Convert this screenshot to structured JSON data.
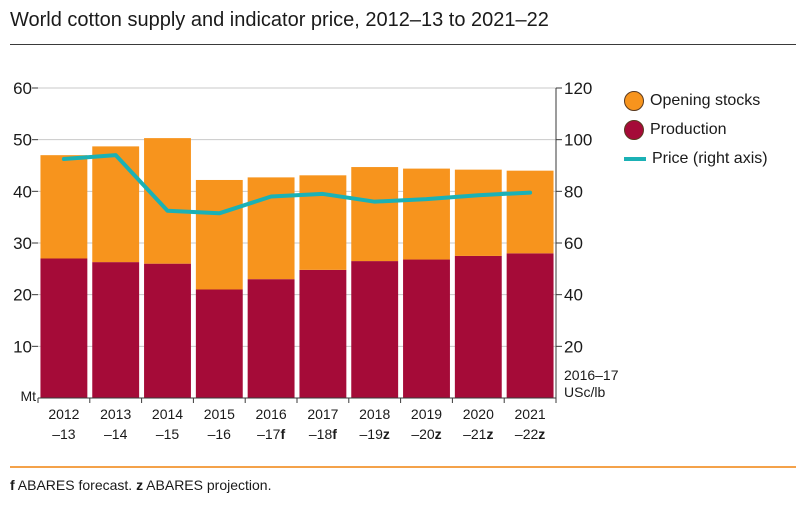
{
  "title": "World cotton supply and indicator price, 2012–13 to 2021–22",
  "footnote": {
    "f_marker": "f",
    "f_text": " ABARES forecast. ",
    "z_marker": "z",
    "z_text": " ABARES projection."
  },
  "colors": {
    "opening_stocks": "#f7941d",
    "production": "#a50b38",
    "price": "#1bb1b5",
    "grid": "#c9c9c9",
    "axis": "#3a3a3a"
  },
  "chart_data": {
    "type": "bar",
    "stacked": true,
    "categories": [
      {
        "line1": "2012",
        "line2": "–13",
        "suffix": ""
      },
      {
        "line1": "2013",
        "line2": "–14",
        "suffix": ""
      },
      {
        "line1": "2014",
        "line2": "–15",
        "suffix": ""
      },
      {
        "line1": "2015",
        "line2": "–16",
        "suffix": ""
      },
      {
        "line1": "2016",
        "line2": "–17",
        "suffix": "f"
      },
      {
        "line1": "2017",
        "line2": "–18",
        "suffix": "f"
      },
      {
        "line1": "2018",
        "line2": "–19",
        "suffix": "z"
      },
      {
        "line1": "2019",
        "line2": "–20",
        "suffix": "z"
      },
      {
        "line1": "2020",
        "line2": "–21",
        "suffix": "z"
      },
      {
        "line1": "2021",
        "line2": "–22",
        "suffix": "z"
      }
    ],
    "series": [
      {
        "name": "Production",
        "axis": "left",
        "values": [
          27.0,
          26.3,
          26.0,
          21.0,
          23.0,
          24.8,
          26.5,
          26.8,
          27.5,
          28.0
        ]
      },
      {
        "name": "Opening stocks",
        "axis": "left",
        "values": [
          20.0,
          22.4,
          24.3,
          21.2,
          19.7,
          18.3,
          18.2,
          17.6,
          16.7,
          16.0
        ]
      },
      {
        "name": "Price (right axis)",
        "type": "line",
        "axis": "right",
        "values": [
          92.5,
          94.0,
          72.5,
          71.5,
          78.0,
          79.0,
          76.0,
          77.0,
          78.5,
          79.5
        ]
      }
    ],
    "left_axis": {
      "unit": "Mt",
      "ticks": [
        10,
        20,
        30,
        40,
        50,
        60
      ],
      "ylim": [
        0,
        60
      ]
    },
    "right_axis": {
      "unit_line1": "2016–17",
      "unit_line2": "USc/lb",
      "ticks": [
        20,
        40,
        60,
        80,
        100,
        120
      ],
      "ylim": [
        0,
        120
      ]
    },
    "grid": true,
    "legend": {
      "placement": "right",
      "items": [
        "Opening stocks",
        "Production",
        "Price (right axis)"
      ]
    }
  }
}
